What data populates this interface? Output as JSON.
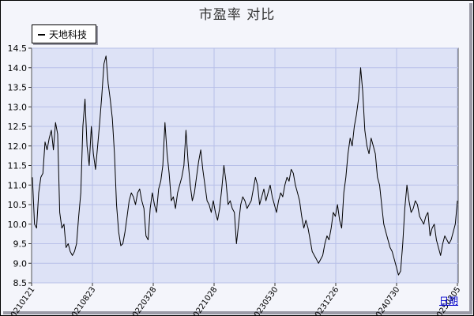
{
  "chart_data": {
    "type": "line",
    "title": "市盈率  对比",
    "series": [
      {
        "name": "天地科技",
        "values": [
          11.2,
          10.0,
          9.9,
          10.8,
          11.2,
          11.3,
          12.1,
          11.9,
          12.2,
          12.4,
          11.9,
          12.6,
          12.3,
          10.3,
          9.9,
          10.0,
          9.4,
          9.5,
          9.3,
          9.2,
          9.3,
          9.5,
          10.2,
          10.8,
          12.5,
          13.2,
          12.0,
          11.5,
          12.5,
          11.8,
          11.4,
          12.0,
          12.6,
          13.3,
          14.1,
          14.3,
          13.6,
          13.2,
          12.7,
          11.8,
          10.5,
          9.8,
          9.45,
          9.5,
          9.8,
          10.2,
          10.6,
          10.8,
          10.7,
          10.5,
          10.8,
          10.9,
          10.6,
          10.4,
          9.7,
          9.6,
          10.4,
          10.8,
          10.5,
          10.3,
          10.9,
          11.1,
          11.5,
          12.6,
          11.8,
          11.3,
          10.6,
          10.7,
          10.4,
          10.8,
          11.0,
          11.2,
          11.5,
          12.4,
          11.6,
          11.0,
          10.6,
          10.8,
          11.2,
          11.6,
          11.9,
          11.4,
          11.0,
          10.6,
          10.5,
          10.3,
          10.6,
          10.3,
          10.1,
          10.4,
          10.9,
          11.5,
          11.1,
          10.5,
          10.6,
          10.4,
          10.3,
          9.5,
          10.0,
          10.5,
          10.7,
          10.6,
          10.4,
          10.5,
          10.6,
          10.9,
          11.2,
          11.0,
          10.5,
          10.7,
          10.9,
          10.6,
          10.8,
          11.0,
          10.7,
          10.5,
          10.3,
          10.6,
          10.8,
          10.7,
          11.0,
          11.2,
          11.1,
          11.4,
          11.3,
          11.0,
          10.8,
          10.6,
          10.2,
          9.9,
          10.1,
          9.9,
          9.6,
          9.3,
          9.2,
          9.1,
          9.0,
          9.1,
          9.2,
          9.5,
          9.7,
          9.6,
          9.9,
          10.3,
          10.2,
          10.5,
          10.1,
          9.9,
          10.8,
          11.2,
          11.8,
          12.2,
          12.0,
          12.5,
          12.8,
          13.2,
          14.0,
          13.4,
          12.4,
          12.0,
          11.8,
          12.2,
          12.0,
          11.8,
          11.2,
          11.0,
          10.5,
          10.0,
          9.8,
          9.6,
          9.4,
          9.3,
          9.1,
          8.9,
          8.7,
          8.8,
          9.5,
          10.4,
          11.0,
          10.6,
          10.3,
          10.4,
          10.6,
          10.5,
          10.2,
          10.1,
          10.0,
          10.2,
          10.3,
          9.7,
          9.9,
          10.0,
          9.6,
          9.4,
          9.2,
          9.5,
          9.7,
          9.6,
          9.5,
          9.6,
          9.8,
          10.0,
          10.6
        ]
      }
    ],
    "x_tick_labels": [
      "20210121",
      "20210823",
      "20220328",
      "20221028",
      "20230530",
      "20231226",
      "20240730",
      "20250205"
    ],
    "y_tick_labels": [
      "8.5",
      "9.0",
      "9.5",
      "10.0",
      "10.5",
      "11.0",
      "11.5",
      "12.0",
      "12.5",
      "13.0",
      "13.5",
      "14.0",
      "14.5"
    ],
    "ylim": [
      8.5,
      14.5
    ],
    "grid": true,
    "legend_position": "top-left",
    "colors": {
      "line": "#000000",
      "plot_background": "#dde2f6",
      "grid": "#b8c0e8",
      "page_background": "#f4f5fb"
    }
  },
  "footer": {
    "period_link": "日期"
  }
}
